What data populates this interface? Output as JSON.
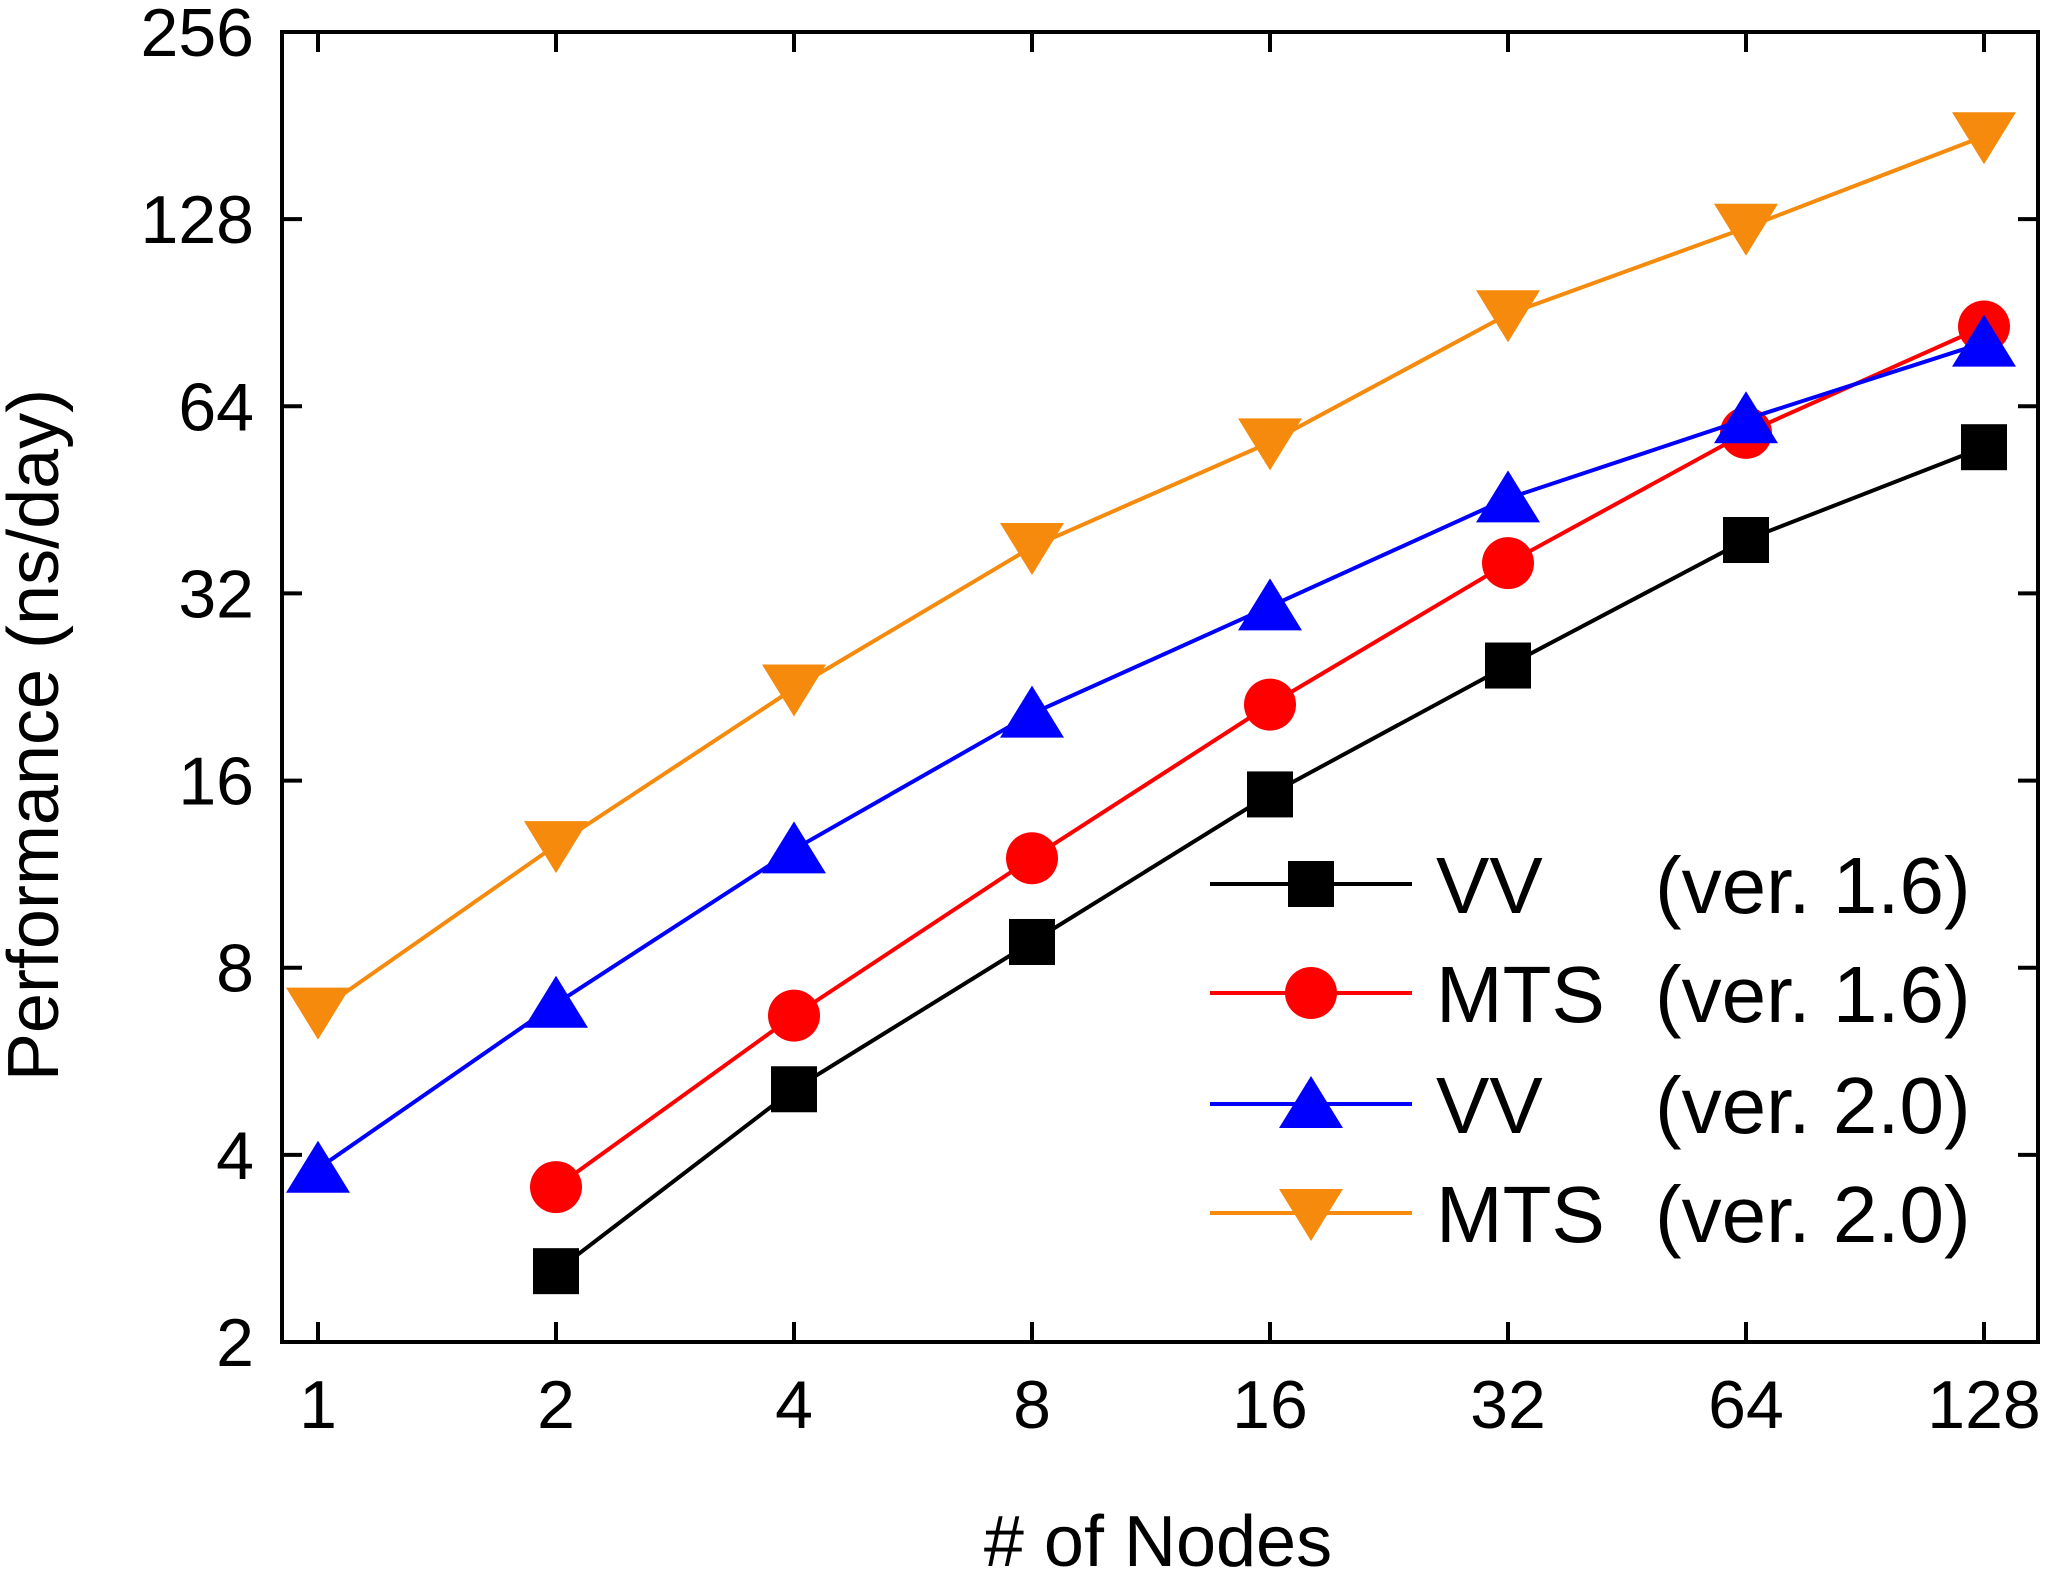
{
  "chart_data": {
    "type": "line",
    "title": "",
    "xlabel": "# of Nodes",
    "ylabel": "Performance (ns/day)",
    "x_scale": "log2",
    "y_scale": "log2",
    "x": [
      1,
      2,
      4,
      8,
      16,
      32,
      64,
      128
    ],
    "x_tick_labels": [
      "1",
      "2",
      "4",
      "8",
      "16",
      "32",
      "64",
      "128"
    ],
    "y_ticks": [
      2,
      4,
      8,
      16,
      32,
      64,
      128,
      256
    ],
    "y_tick_labels": [
      "2",
      "4",
      "8",
      "16",
      "32",
      "64",
      "128",
      "256"
    ],
    "xlim": [
      0.9,
      137
    ],
    "ylim": [
      2,
      256
    ],
    "grid": false,
    "legend_position": "bottom-right",
    "series": [
      {
        "name": "VV",
        "version": "(ver. 1.6)",
        "color": "#000000",
        "marker": "square",
        "x": [
          2,
          4,
          8,
          16,
          32,
          64,
          128
        ],
        "values": [
          2.6,
          5.1,
          8.8,
          15.2,
          24.5,
          39.0,
          55.0
        ]
      },
      {
        "name": "MTS",
        "version": "(ver. 1.6)",
        "color": "#ff0000",
        "marker": "circle",
        "x": [
          2,
          4,
          8,
          16,
          32,
          64,
          128
        ],
        "values": [
          3.55,
          6.7,
          12.0,
          21.2,
          35.8,
          58.0,
          86.0
        ]
      },
      {
        "name": "VV",
        "version": "(ver. 2.0)",
        "color": "#0000ff",
        "marker": "triangle-up",
        "x": [
          1,
          2,
          4,
          8,
          16,
          32,
          64,
          128
        ],
        "values": [
          3.8,
          7.0,
          12.4,
          20.5,
          30.5,
          45.5,
          61.0,
          81.0
        ]
      },
      {
        "name": "MTS",
        "version": "(ver. 2.0)",
        "color": "#f58a0c",
        "marker": "triangle-down",
        "x": [
          1,
          2,
          4,
          8,
          16,
          32,
          64,
          128
        ],
        "values": [
          6.8,
          12.6,
          22.5,
          38.0,
          56.0,
          90.0,
          124.0,
          174.0
        ]
      }
    ]
  }
}
